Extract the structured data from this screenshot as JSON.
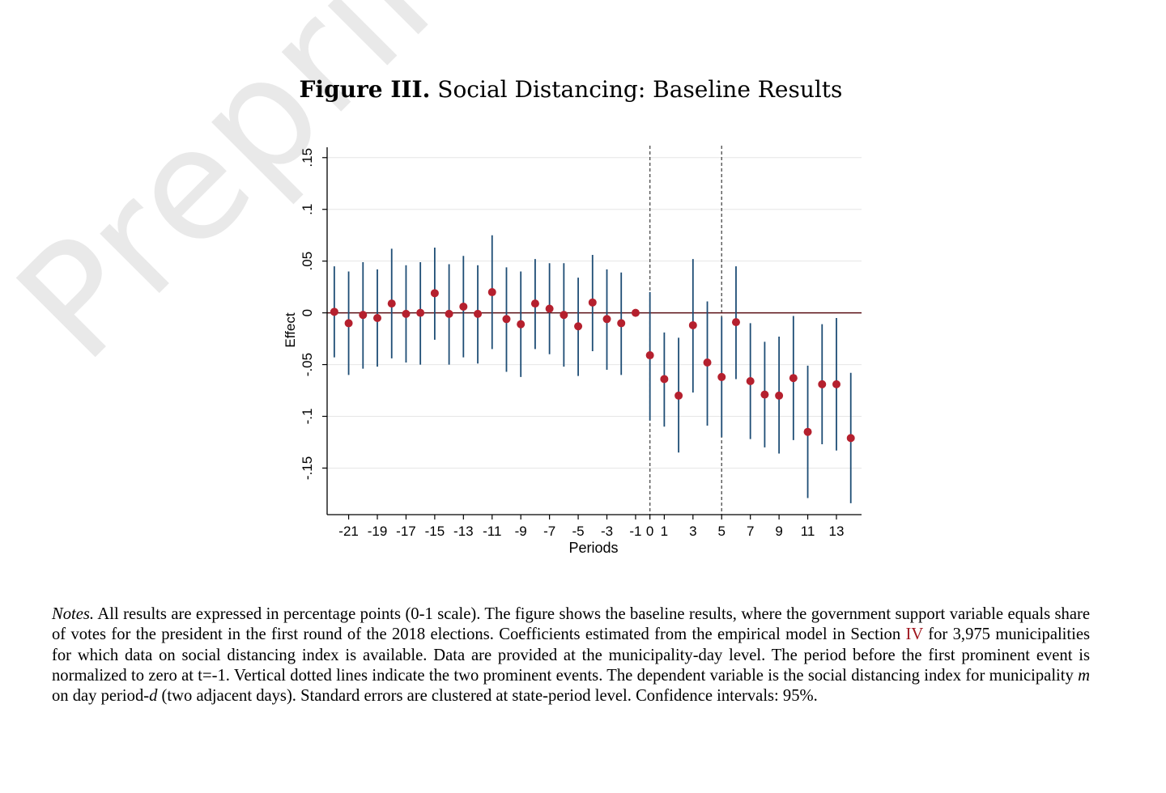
{
  "watermark": "Preprint not p",
  "figure": {
    "label": "Figure III.",
    "title": "Social Distancing: Baseline Results"
  },
  "chart_data": {
    "type": "scatter",
    "title": "",
    "xlabel": "Periods",
    "ylabel": "Effect",
    "xlim": [
      -22.5,
      14.75
    ],
    "ylim": [
      -0.195,
      0.16
    ],
    "xticks": [
      -21,
      -19,
      -17,
      -15,
      -13,
      -11,
      -9,
      -7,
      -5,
      -3,
      -1,
      0,
      1,
      3,
      5,
      7,
      9,
      11,
      13
    ],
    "yticks": [
      {
        "value": 0.15,
        "label": ".15"
      },
      {
        "value": 0.1,
        "label": ".1"
      },
      {
        "value": 0.05,
        "label": ".05"
      },
      {
        "value": 0,
        "label": "0"
      },
      {
        "value": -0.05,
        "label": "-.05"
      },
      {
        "value": -0.1,
        "label": "-.1"
      },
      {
        "value": -0.15,
        "label": "-.15"
      }
    ],
    "gridlines": true,
    "reference_hline": 0,
    "vertical_dotted_lines": [
      0,
      5
    ],
    "series": [
      {
        "point_color": "#b5202e",
        "ci_color": "#1e4d75",
        "confidence_interval": "95%",
        "points": [
          {
            "x": -22,
            "y": 0.001,
            "lo": -0.043,
            "hi": 0.045
          },
          {
            "x": -21,
            "y": -0.01,
            "lo": -0.06,
            "hi": 0.04
          },
          {
            "x": -20,
            "y": -0.002,
            "lo": -0.054,
            "hi": 0.049
          },
          {
            "x": -19,
            "y": -0.005,
            "lo": -0.052,
            "hi": 0.042
          },
          {
            "x": -18,
            "y": 0.009,
            "lo": -0.044,
            "hi": 0.062
          },
          {
            "x": -17,
            "y": -0.001,
            "lo": -0.048,
            "hi": 0.046
          },
          {
            "x": -16,
            "y": 0.0,
            "lo": -0.05,
            "hi": 0.049
          },
          {
            "x": -15,
            "y": 0.019,
            "lo": -0.026,
            "hi": 0.063
          },
          {
            "x": -14,
            "y": -0.001,
            "lo": -0.05,
            "hi": 0.047
          },
          {
            "x": -13,
            "y": 0.006,
            "lo": -0.043,
            "hi": 0.055
          },
          {
            "x": -12,
            "y": -0.001,
            "lo": -0.049,
            "hi": 0.046
          },
          {
            "x": -11,
            "y": 0.02,
            "lo": -0.035,
            "hi": 0.075
          },
          {
            "x": -10,
            "y": -0.006,
            "lo": -0.057,
            "hi": 0.044
          },
          {
            "x": -9,
            "y": -0.011,
            "lo": -0.062,
            "hi": 0.04
          },
          {
            "x": -8,
            "y": 0.009,
            "lo": -0.035,
            "hi": 0.052
          },
          {
            "x": -7,
            "y": 0.004,
            "lo": -0.04,
            "hi": 0.048
          },
          {
            "x": -6,
            "y": -0.002,
            "lo": -0.052,
            "hi": 0.048
          },
          {
            "x": -5,
            "y": -0.013,
            "lo": -0.061,
            "hi": 0.034
          },
          {
            "x": -4,
            "y": 0.01,
            "lo": -0.037,
            "hi": 0.056
          },
          {
            "x": -3,
            "y": -0.006,
            "lo": -0.055,
            "hi": 0.042
          },
          {
            "x": -2,
            "y": -0.01,
            "lo": -0.06,
            "hi": 0.039
          },
          {
            "x": -1,
            "y": 0.0,
            "lo": 0.0,
            "hi": 0.0
          },
          {
            "x": 0,
            "y": -0.041,
            "lo": -0.104,
            "hi": 0.02
          },
          {
            "x": 1,
            "y": -0.064,
            "lo": -0.11,
            "hi": -0.019
          },
          {
            "x": 2,
            "y": -0.08,
            "lo": -0.135,
            "hi": -0.024
          },
          {
            "x": 3,
            "y": -0.012,
            "lo": -0.077,
            "hi": 0.052
          },
          {
            "x": 4,
            "y": -0.048,
            "lo": -0.109,
            "hi": 0.011
          },
          {
            "x": 5,
            "y": -0.062,
            "lo": -0.12,
            "hi": -0.004
          },
          {
            "x": 6,
            "y": -0.009,
            "lo": -0.064,
            "hi": 0.045
          },
          {
            "x": 7,
            "y": -0.066,
            "lo": -0.122,
            "hi": -0.01
          },
          {
            "x": 8,
            "y": -0.079,
            "lo": -0.13,
            "hi": -0.028
          },
          {
            "x": 9,
            "y": -0.08,
            "lo": -0.136,
            "hi": -0.023
          },
          {
            "x": 10,
            "y": -0.063,
            "lo": -0.123,
            "hi": -0.003
          },
          {
            "x": 11,
            "y": -0.115,
            "lo": -0.179,
            "hi": -0.051
          },
          {
            "x": 12,
            "y": -0.069,
            "lo": -0.127,
            "hi": -0.011
          },
          {
            "x": 13,
            "y": -0.069,
            "lo": -0.133,
            "hi": -0.005
          },
          {
            "x": 14,
            "y": -0.121,
            "lo": -0.184,
            "hi": -0.058
          }
        ]
      }
    ]
  },
  "notes": {
    "label": "Notes.",
    "text_1": "All results are expressed in percentage points (0-1 scale). The figure shows the baseline results, where the government support variable equals share of votes for the president in the first round of the 2018 elections. Coefficients estimated from the empirical model in Section",
    "section_ref": "IV",
    "text_2": "for 3,975 municipalities for which data on social distancing index is available. Data are provided at the municipality-day level. The period before the first prominent event is normalized to zero at t=-1. Vertical dotted lines indicate the two prominent events. The dependent variable is the social distancing index for municipality",
    "var_m": "m",
    "text_3": "on day period-",
    "var_d": "d",
    "text_4": "(two adjacent days). Standard errors are clustered at state-period level. Confidence intervals: 95%."
  }
}
